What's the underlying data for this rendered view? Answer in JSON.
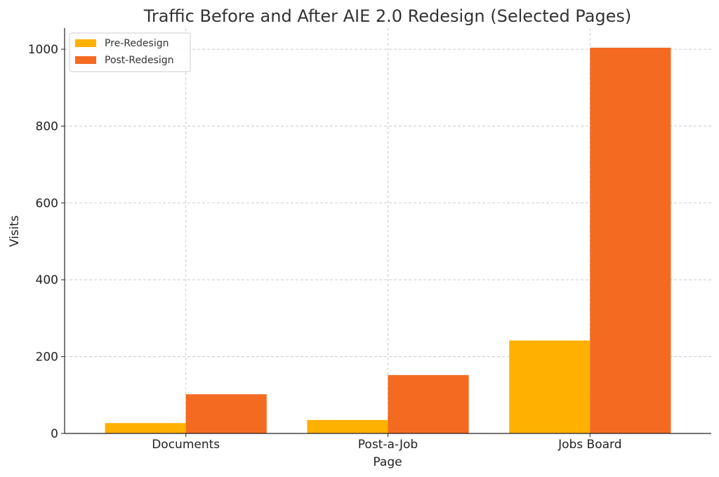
{
  "chart_data": {
    "type": "bar",
    "title": "Traffic Before and After AIE 2.0 Redesign (Selected Pages)",
    "xlabel": "Page",
    "ylabel": "Visits",
    "categories": [
      "Documents",
      "Post-a-Job",
      "Jobs Board"
    ],
    "series": [
      {
        "name": "Pre-Redesign",
        "color": "#FFB000",
        "values": [
          27,
          35,
          242
        ]
      },
      {
        "name": "Post-Redesign",
        "color": "#F46A21",
        "values": [
          102,
          152,
          1004
        ]
      }
    ],
    "ylim": [
      0,
      1055
    ],
    "yticks": [
      0,
      200,
      400,
      600,
      800,
      1000
    ],
    "grid": true,
    "legend_position": "top-left"
  }
}
